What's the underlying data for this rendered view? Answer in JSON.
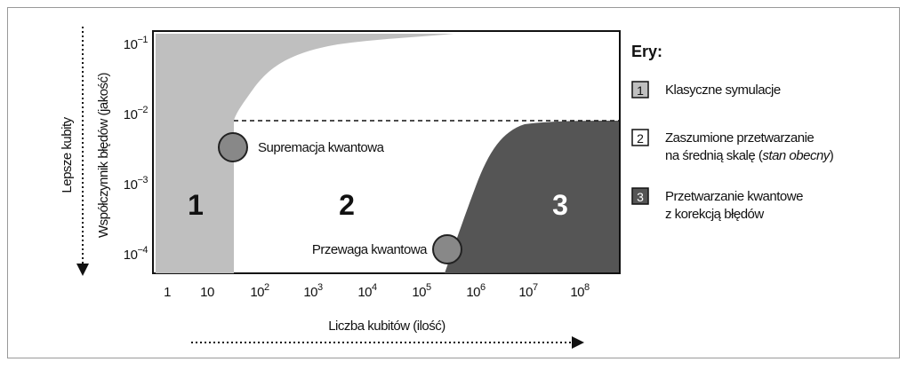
{
  "y_axis": {
    "title": "Współczynnik błędów (jakość)",
    "direction_label": "Lepsze kubity",
    "ticks": [
      {
        "base": "10",
        "exp": "−1"
      },
      {
        "base": "10",
        "exp": "−2"
      },
      {
        "base": "10",
        "exp": "−3"
      },
      {
        "base": "10",
        "exp": "−4"
      }
    ]
  },
  "x_axis": {
    "title": "Liczba kubitów (ilość)",
    "ticks": [
      {
        "base": "1"
      },
      {
        "base": "10"
      },
      {
        "base": "10",
        "exp": "2"
      },
      {
        "base": "10",
        "exp": "3"
      },
      {
        "base": "10",
        "exp": "4"
      },
      {
        "base": "10",
        "exp": "5"
      },
      {
        "base": "10",
        "exp": "6"
      },
      {
        "base": "10",
        "exp": "7"
      },
      {
        "base": "10",
        "exp": "8"
      }
    ]
  },
  "regions": [
    "1",
    "2",
    "3"
  ],
  "markers": [
    "Supremacja kwantowa",
    "Przewaga kwantowa"
  ],
  "legend": {
    "title": "Ery:",
    "items": [
      {
        "key": "1",
        "lines": [
          [
            "Klasyczne symulacje"
          ]
        ]
      },
      {
        "key": "2",
        "lines": [
          [
            "Zaszumione przetwarzanie"
          ],
          [
            "na średnią skalę (",
            "stan obecny",
            ")"
          ]
        ]
      },
      {
        "key": "3",
        "lines": [
          [
            "Przetwarzanie kwantowe"
          ],
          [
            "z korekcją błędów"
          ]
        ]
      }
    ]
  }
}
